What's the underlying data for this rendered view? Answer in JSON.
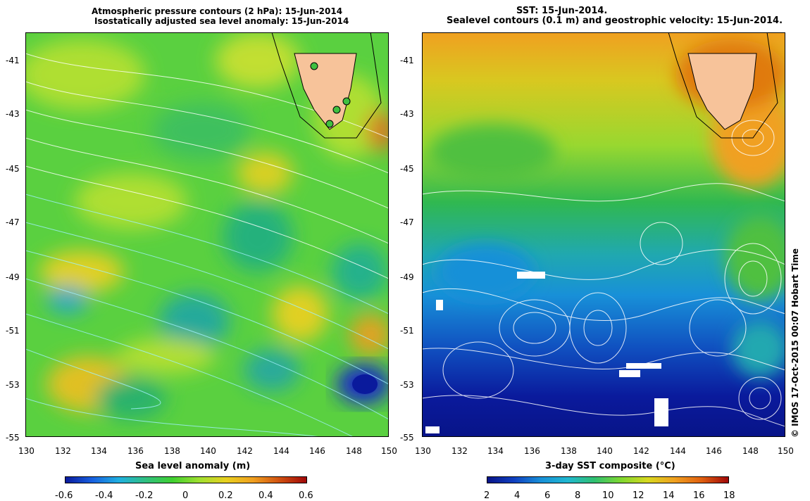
{
  "left_panel": {
    "title_line1": "Atmospheric pressure contours (2 hPa): 15-Jun-2014",
    "title_line2": "Isostatically adjusted sea level anomaly: 15-Jun-2014",
    "x_ticks": [
      "130",
      "132",
      "134",
      "136",
      "138",
      "140",
      "142",
      "144",
      "146",
      "148",
      "150"
    ],
    "y_ticks": [
      "-41",
      "-43",
      "-45",
      "-47",
      "-49",
      "-51",
      "-53",
      "-55"
    ],
    "colorbar_label": "Sea level anomaly (m)",
    "colorbar_ticks": [
      "-0.6",
      "-0.4",
      "-0.2",
      "0",
      "0.2",
      "0.4",
      "0.6"
    ],
    "colors": {
      "low": "#0a1a9c",
      "mid": "#20c040",
      "high": "#b01010",
      "land": "#f7c39a"
    }
  },
  "right_panel": {
    "title_line1": "SST: 15-Jun-2014.",
    "title_line2": "Sealevel contours (0.1 m) and geostrophic velocity: 15-Jun-2014.",
    "x_ticks": [
      "130",
      "132",
      "134",
      "136",
      "138",
      "140",
      "142",
      "144",
      "146",
      "148",
      "150"
    ],
    "y_ticks": [
      "-41",
      "-43",
      "-45",
      "-47",
      "-49",
      "-51",
      "-53",
      "-55"
    ],
    "colorbar_label": "3-day SST composite (°C)",
    "colorbar_ticks": [
      "2",
      "4",
      "6",
      "8",
      "10",
      "12",
      "14",
      "16",
      "18"
    ],
    "colors": {
      "cold": "#0a1a9c",
      "warm": "#e08a10",
      "land": "#f7c39a"
    }
  },
  "credit": "© IMOS 17-Oct-2015 00:07 Hobart Time"
}
